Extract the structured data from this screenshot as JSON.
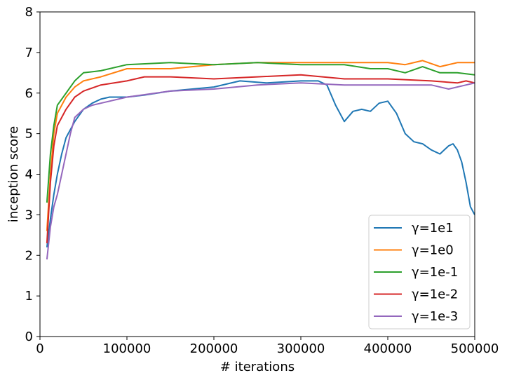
{
  "chart_data": {
    "type": "line",
    "xlabel": "# iterations",
    "ylabel": "inception score",
    "xlim": [
      0,
      500000
    ],
    "ylim": [
      0,
      8
    ],
    "xticks": [
      "0",
      "100000",
      "200000",
      "300000",
      "400000",
      "500000"
    ],
    "yticks": [
      "0",
      "1",
      "2",
      "3",
      "4",
      "5",
      "6",
      "7",
      "8"
    ],
    "grid": false,
    "legend_position": "lower-right",
    "series": [
      {
        "name": "γ=1e1",
        "color": "#1f77b4",
        "points": [
          [
            8000,
            2.2
          ],
          [
            12000,
            2.9
          ],
          [
            16000,
            3.5
          ],
          [
            20000,
            4.0
          ],
          [
            25000,
            4.5
          ],
          [
            30000,
            4.9
          ],
          [
            40000,
            5.3
          ],
          [
            50000,
            5.6
          ],
          [
            60000,
            5.75
          ],
          [
            70000,
            5.85
          ],
          [
            80000,
            5.9
          ],
          [
            100000,
            5.9
          ],
          [
            120000,
            5.95
          ],
          [
            150000,
            6.05
          ],
          [
            200000,
            6.15
          ],
          [
            230000,
            6.3
          ],
          [
            260000,
            6.25
          ],
          [
            300000,
            6.3
          ],
          [
            320000,
            6.3
          ],
          [
            330000,
            6.2
          ],
          [
            340000,
            5.7
          ],
          [
            350000,
            5.3
          ],
          [
            360000,
            5.55
          ],
          [
            370000,
            5.6
          ],
          [
            380000,
            5.55
          ],
          [
            390000,
            5.75
          ],
          [
            400000,
            5.8
          ],
          [
            410000,
            5.5
          ],
          [
            420000,
            5.0
          ],
          [
            430000,
            4.8
          ],
          [
            440000,
            4.75
          ],
          [
            450000,
            4.6
          ],
          [
            460000,
            4.5
          ],
          [
            470000,
            4.7
          ],
          [
            475000,
            4.75
          ],
          [
            480000,
            4.6
          ],
          [
            485000,
            4.3
          ],
          [
            490000,
            3.8
          ],
          [
            495000,
            3.2
          ],
          [
            500000,
            3.0
          ]
        ]
      },
      {
        "name": "γ=1e0",
        "color": "#ff7f0e",
        "points": [
          [
            8000,
            2.6
          ],
          [
            12000,
            4.0
          ],
          [
            16000,
            5.0
          ],
          [
            20000,
            5.5
          ],
          [
            30000,
            5.9
          ],
          [
            40000,
            6.15
          ],
          [
            50000,
            6.3
          ],
          [
            70000,
            6.4
          ],
          [
            100000,
            6.6
          ],
          [
            150000,
            6.6
          ],
          [
            200000,
            6.7
          ],
          [
            250000,
            6.75
          ],
          [
            300000,
            6.75
          ],
          [
            350000,
            6.75
          ],
          [
            400000,
            6.75
          ],
          [
            420000,
            6.7
          ],
          [
            440000,
            6.8
          ],
          [
            460000,
            6.65
          ],
          [
            480000,
            6.75
          ],
          [
            500000,
            6.75
          ]
        ]
      },
      {
        "name": "γ=1e-1",
        "color": "#2ca02c",
        "points": [
          [
            8000,
            3.3
          ],
          [
            12000,
            4.5
          ],
          [
            16000,
            5.2
          ],
          [
            20000,
            5.7
          ],
          [
            30000,
            6.0
          ],
          [
            40000,
            6.3
          ],
          [
            50000,
            6.5
          ],
          [
            70000,
            6.55
          ],
          [
            100000,
            6.7
          ],
          [
            150000,
            6.75
          ],
          [
            200000,
            6.7
          ],
          [
            250000,
            6.75
          ],
          [
            300000,
            6.7
          ],
          [
            350000,
            6.7
          ],
          [
            380000,
            6.6
          ],
          [
            400000,
            6.6
          ],
          [
            420000,
            6.5
          ],
          [
            440000,
            6.65
          ],
          [
            460000,
            6.5
          ],
          [
            480000,
            6.5
          ],
          [
            500000,
            6.45
          ]
        ]
      },
      {
        "name": "γ=1e-2",
        "color": "#d62728",
        "points": [
          [
            8000,
            2.3
          ],
          [
            12000,
            3.8
          ],
          [
            16000,
            4.7
          ],
          [
            20000,
            5.2
          ],
          [
            30000,
            5.6
          ],
          [
            40000,
            5.9
          ],
          [
            50000,
            6.05
          ],
          [
            70000,
            6.2
          ],
          [
            100000,
            6.3
          ],
          [
            120000,
            6.4
          ],
          [
            150000,
            6.4
          ],
          [
            200000,
            6.35
          ],
          [
            250000,
            6.4
          ],
          [
            300000,
            6.45
          ],
          [
            350000,
            6.35
          ],
          [
            400000,
            6.35
          ],
          [
            450000,
            6.3
          ],
          [
            480000,
            6.25
          ],
          [
            490000,
            6.3
          ],
          [
            500000,
            6.25
          ]
        ]
      },
      {
        "name": "γ=1e-3",
        "color": "#9467bd",
        "points": [
          [
            8000,
            1.9
          ],
          [
            12000,
            2.7
          ],
          [
            16000,
            3.2
          ],
          [
            20000,
            3.5
          ],
          [
            25000,
            4.0
          ],
          [
            30000,
            4.5
          ],
          [
            35000,
            5.0
          ],
          [
            40000,
            5.4
          ],
          [
            50000,
            5.6
          ],
          [
            60000,
            5.7
          ],
          [
            70000,
            5.75
          ],
          [
            80000,
            5.8
          ],
          [
            100000,
            5.9
          ],
          [
            150000,
            6.05
          ],
          [
            200000,
            6.1
          ],
          [
            250000,
            6.2
          ],
          [
            300000,
            6.25
          ],
          [
            350000,
            6.2
          ],
          [
            400000,
            6.2
          ],
          [
            450000,
            6.2
          ],
          [
            470000,
            6.1
          ],
          [
            490000,
            6.2
          ],
          [
            500000,
            6.25
          ]
        ]
      }
    ]
  }
}
